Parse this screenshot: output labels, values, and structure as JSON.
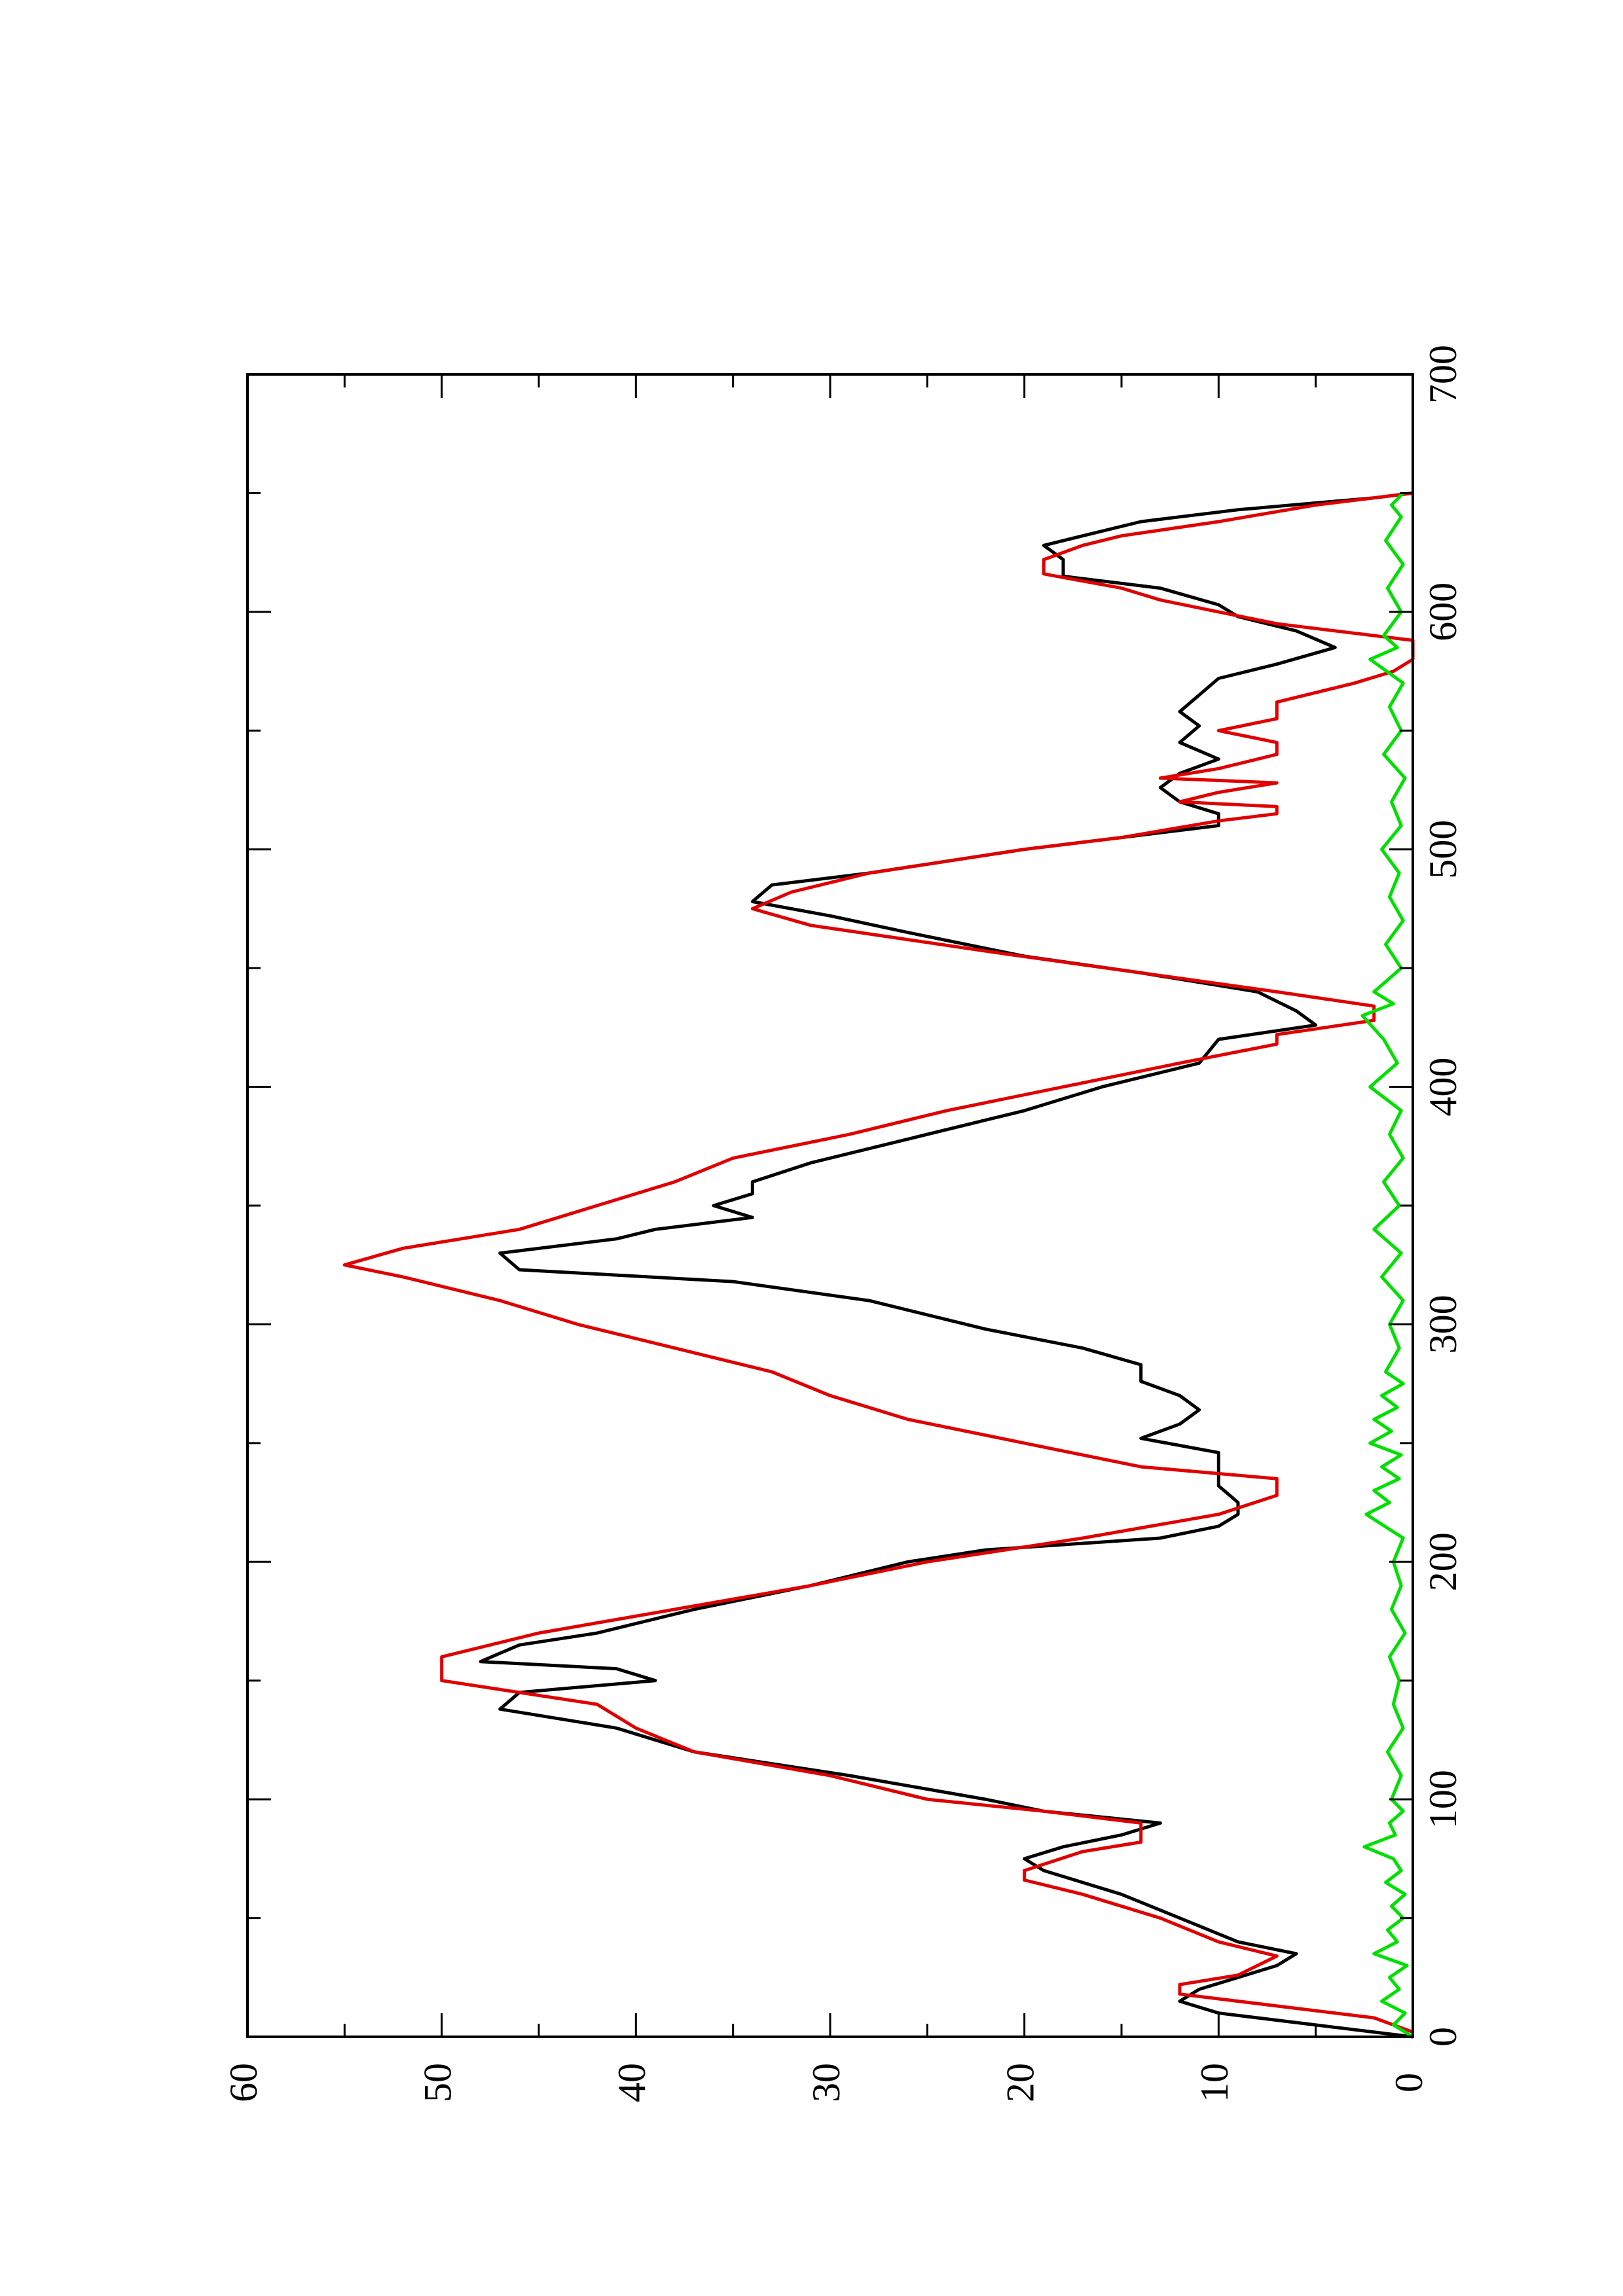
{
  "chart_data": {
    "type": "line",
    "orientation": "rotated-90-clockwise",
    "title": "",
    "xlabel": "",
    "ylabel": "",
    "xlim": [
      0,
      700
    ],
    "ylim": [
      0,
      60
    ],
    "x_ticks": [
      0,
      100,
      200,
      300,
      400,
      500,
      600,
      700
    ],
    "x_ticks_labels": [
      "0",
      "100",
      "200",
      "300",
      "400",
      "500",
      "600",
      "700"
    ],
    "y_ticks": [
      0,
      10,
      20,
      30,
      40,
      50,
      60
    ],
    "y_ticks_labels": [
      "0",
      "10",
      "20",
      "30",
      "40",
      "50",
      "60"
    ],
    "x_minor_ticks": [
      50,
      150,
      250,
      350,
      450,
      550,
      650
    ],
    "y_minor_ticks": [
      5,
      15,
      25,
      35,
      45,
      55
    ],
    "grid": false,
    "legend": "none",
    "series": [
      {
        "color": "#000000",
        "style": "line",
        "points": [
          [
            0,
            0
          ],
          [
            5,
            5
          ],
          [
            10,
            10
          ],
          [
            15,
            12
          ],
          [
            20,
            11
          ],
          [
            25,
            9
          ],
          [
            30,
            7
          ],
          [
            35,
            6
          ],
          [
            40,
            9
          ],
          [
            50,
            12
          ],
          [
            60,
            15
          ],
          [
            70,
            19
          ],
          [
            75,
            20
          ],
          [
            80,
            18
          ],
          [
            85,
            15
          ],
          [
            90,
            13
          ],
          [
            95,
            19
          ],
          [
            100,
            22
          ],
          [
            110,
            29
          ],
          [
            120,
            37
          ],
          [
            130,
            41
          ],
          [
            138,
            47
          ],
          [
            145,
            46
          ],
          [
            150,
            39
          ],
          [
            155,
            41
          ],
          [
            158,
            48
          ],
          [
            165,
            46
          ],
          [
            170,
            42
          ],
          [
            180,
            37
          ],
          [
            190,
            31
          ],
          [
            200,
            26
          ],
          [
            205,
            22
          ],
          [
            210,
            13
          ],
          [
            215,
            10
          ],
          [
            220,
            9
          ],
          [
            225,
            9
          ],
          [
            232,
            10
          ],
          [
            240,
            10
          ],
          [
            246,
            10
          ],
          [
            252,
            14
          ],
          [
            258,
            12
          ],
          [
            264,
            11
          ],
          [
            270,
            12
          ],
          [
            276,
            14
          ],
          [
            283,
            14
          ],
          [
            290,
            17
          ],
          [
            298,
            22
          ],
          [
            310,
            28
          ],
          [
            318,
            35
          ],
          [
            323,
            46
          ],
          [
            330,
            47
          ],
          [
            336,
            41
          ],
          [
            340,
            39
          ],
          [
            345,
            34
          ],
          [
            350,
            36
          ],
          [
            355,
            34
          ],
          [
            360,
            34
          ],
          [
            368,
            31
          ],
          [
            378,
            26
          ],
          [
            390,
            20
          ],
          [
            400,
            16
          ],
          [
            410,
            11
          ],
          [
            420,
            10
          ],
          [
            426,
            5
          ],
          [
            432,
            6
          ],
          [
            440,
            8
          ],
          [
            448,
            14
          ],
          [
            455,
            20
          ],
          [
            465,
            26
          ],
          [
            472,
            30
          ],
          [
            478,
            34
          ],
          [
            485,
            33
          ],
          [
            490,
            28
          ],
          [
            500,
            20
          ],
          [
            505,
            15
          ],
          [
            510,
            10
          ],
          [
            515,
            10
          ],
          [
            520,
            12
          ],
          [
            526,
            13
          ],
          [
            532,
            12
          ],
          [
            538,
            10
          ],
          [
            545,
            12
          ],
          [
            552,
            11
          ],
          [
            558,
            12
          ],
          [
            565,
            11
          ],
          [
            572,
            10
          ],
          [
            578,
            7
          ],
          [
            585,
            4
          ],
          [
            592,
            6
          ],
          [
            598,
            9
          ],
          [
            603,
            10
          ],
          [
            610,
            13
          ],
          [
            615,
            18
          ],
          [
            622,
            18
          ],
          [
            628,
            19
          ],
          [
            632,
            17
          ],
          [
            638,
            14
          ],
          [
            643,
            9
          ],
          [
            648,
            2
          ],
          [
            650,
            0
          ]
        ]
      },
      {
        "color": "#e00000",
        "style": "line",
        "points": [
          [
            2,
            0
          ],
          [
            8,
            2
          ],
          [
            12,
            6
          ],
          [
            18,
            12
          ],
          [
            22,
            12
          ],
          [
            26,
            9
          ],
          [
            34,
            7
          ],
          [
            40,
            10
          ],
          [
            50,
            13
          ],
          [
            60,
            17
          ],
          [
            66,
            20
          ],
          [
            70,
            20
          ],
          [
            78,
            17
          ],
          [
            82,
            14
          ],
          [
            86,
            14
          ],
          [
            90,
            14
          ],
          [
            95,
            19
          ],
          [
            100,
            25
          ],
          [
            110,
            30
          ],
          [
            120,
            37
          ],
          [
            130,
            40
          ],
          [
            140,
            42
          ],
          [
            150,
            50
          ],
          [
            160,
            50
          ],
          [
            170,
            45
          ],
          [
            180,
            38
          ],
          [
            190,
            31
          ],
          [
            200,
            25
          ],
          [
            210,
            17
          ],
          [
            220,
            10
          ],
          [
            228,
            7
          ],
          [
            235,
            7
          ],
          [
            240,
            14
          ],
          [
            250,
            20
          ],
          [
            260,
            26
          ],
          [
            270,
            30
          ],
          [
            280,
            33
          ],
          [
            290,
            38
          ],
          [
            300,
            43
          ],
          [
            310,
            47
          ],
          [
            320,
            52
          ],
          [
            325,
            55
          ],
          [
            332,
            52
          ],
          [
            340,
            46
          ],
          [
            350,
            42
          ],
          [
            360,
            38
          ],
          [
            370,
            35
          ],
          [
            380,
            29
          ],
          [
            390,
            24
          ],
          [
            400,
            18
          ],
          [
            410,
            12
          ],
          [
            418,
            7
          ],
          [
            422,
            7
          ],
          [
            428,
            2
          ],
          [
            434,
            2
          ],
          [
            440,
            7
          ],
          [
            448,
            14
          ],
          [
            456,
            21
          ],
          [
            462,
            26
          ],
          [
            468,
            31
          ],
          [
            475,
            34
          ],
          [
            482,
            32
          ],
          [
            490,
            28
          ],
          [
            500,
            20
          ],
          [
            505,
            15
          ],
          [
            512,
            10
          ],
          [
            515,
            7
          ],
          [
            518,
            7
          ],
          [
            520,
            12
          ],
          [
            524,
            10
          ],
          [
            528,
            7
          ],
          [
            530,
            13
          ],
          [
            534,
            10
          ],
          [
            540,
            7
          ],
          [
            545,
            7
          ],
          [
            550,
            10
          ],
          [
            555,
            7
          ],
          [
            562,
            7
          ],
          [
            570,
            3
          ],
          [
            575,
            1
          ],
          [
            580,
            0
          ],
          [
            588,
            0
          ],
          [
            595,
            7
          ],
          [
            600,
            10
          ],
          [
            605,
            13
          ],
          [
            610,
            15
          ],
          [
            616,
            19
          ],
          [
            622,
            19
          ],
          [
            628,
            17
          ],
          [
            632,
            15
          ],
          [
            638,
            10
          ],
          [
            645,
            5
          ],
          [
            650,
            0
          ]
        ]
      },
      {
        "color": "#00e000",
        "style": "line",
        "points": [
          [
            0,
            0
          ],
          [
            5,
            1
          ],
          [
            10,
            0.4
          ],
          [
            15,
            1.6
          ],
          [
            20,
            0.7
          ],
          [
            25,
            1.2
          ],
          [
            30,
            0.3
          ],
          [
            35,
            2.0
          ],
          [
            40,
            0.8
          ],
          [
            45,
            1.3
          ],
          [
            50,
            0.5
          ],
          [
            55,
            1.1
          ],
          [
            60,
            0.4
          ],
          [
            65,
            1.4
          ],
          [
            70,
            0.6
          ],
          [
            75,
            1.0
          ],
          [
            80,
            2.5
          ],
          [
            85,
            0.9
          ],
          [
            90,
            1.2
          ],
          [
            95,
            0.5
          ],
          [
            100,
            1.1
          ],
          [
            110,
            0.6
          ],
          [
            120,
            1.3
          ],
          [
            130,
            0.5
          ],
          [
            140,
            1.0
          ],
          [
            150,
            0.7
          ],
          [
            160,
            1.2
          ],
          [
            170,
            0.4
          ],
          [
            180,
            1.1
          ],
          [
            190,
            0.6
          ],
          [
            200,
            1.0
          ],
          [
            210,
            0.5
          ],
          [
            220,
            2.4
          ],
          [
            225,
            1.2
          ],
          [
            230,
            2.0
          ],
          [
            235,
            0.7
          ],
          [
            240,
            1.6
          ],
          [
            245,
            0.6
          ],
          [
            250,
            2.2
          ],
          [
            255,
            1.1
          ],
          [
            260,
            2.0
          ],
          [
            265,
            0.8
          ],
          [
            270,
            1.6
          ],
          [
            275,
            0.5
          ],
          [
            280,
            1.4
          ],
          [
            290,
            0.7
          ],
          [
            300,
            1.2
          ],
          [
            310,
            0.5
          ],
          [
            320,
            1.6
          ],
          [
            330,
            0.6
          ],
          [
            340,
            2.0
          ],
          [
            350,
            0.7
          ],
          [
            360,
            1.5
          ],
          [
            370,
            0.5
          ],
          [
            380,
            1.2
          ],
          [
            390,
            0.6
          ],
          [
            400,
            2.2
          ],
          [
            410,
            0.8
          ],
          [
            420,
            1.5
          ],
          [
            430,
            2.6
          ],
          [
            435,
            1.0
          ],
          [
            440,
            2.0
          ],
          [
            450,
            0.6
          ],
          [
            460,
            1.4
          ],
          [
            470,
            0.5
          ],
          [
            480,
            1.2
          ],
          [
            490,
            0.7
          ],
          [
            500,
            1.6
          ],
          [
            510,
            0.6
          ],
          [
            520,
            1.1
          ],
          [
            530,
            0.4
          ],
          [
            540,
            1.5
          ],
          [
            550,
            0.6
          ],
          [
            560,
            1.2
          ],
          [
            570,
            0.5
          ],
          [
            580,
            2.2
          ],
          [
            585,
            0.8
          ],
          [
            590,
            1.5
          ],
          [
            600,
            0.6
          ],
          [
            610,
            1.3
          ],
          [
            620,
            0.5
          ],
          [
            630,
            1.4
          ],
          [
            640,
            0.6
          ],
          [
            645,
            1.1
          ],
          [
            650,
            0.5
          ]
        ]
      }
    ]
  }
}
